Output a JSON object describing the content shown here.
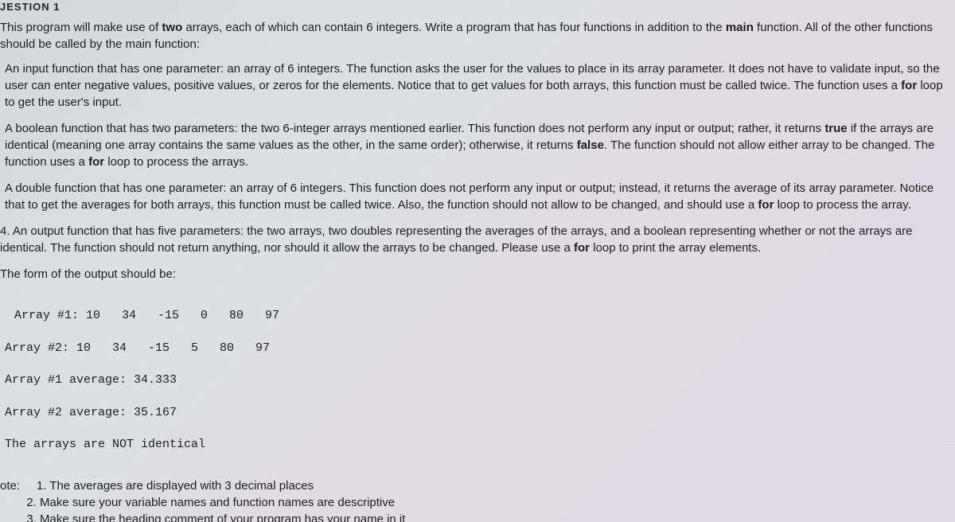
{
  "heading": "JESTION 1",
  "intro_part1": "This program will make use of ",
  "intro_bold1": "two",
  "intro_part2": " arrays, each of which can contain 6 integers. Write a program that has four functions in addition to the ",
  "intro_bold2": "main",
  "intro_part3": " function. All of the other functions should be called by the main function:",
  "p1_a": "An input function that has one parameter: an array of 6 integers. The function asks the user for the values to place in its array parameter. It does not have to validate input, so the user can enter negative values, positive values, or zeros for the elements. Notice that to get values for both arrays, this function must be called twice. The function uses a ",
  "p1_for": "for",
  "p1_b": " loop to get the user's input.",
  "p2_a": "A boolean function that has two parameters: the two 6-integer arrays mentioned earlier. This function does not perform any input or output; rather, it returns ",
  "p2_true": "true",
  "p2_b": " if the arrays are identical (meaning one array contains the same values as the other, in the same order); otherwise, it returns ",
  "p2_false": "false",
  "p2_c": ". The function should not allow either array to be changed. The function uses a    ",
  "p2_for": "for",
  "p2_d": " loop to process the arrays.",
  "p3_a": "A double function that has one parameter: an array of 6 integers. This function does not perform any input or output; instead, it returns the average of its array parameter.     Notice that to get the averages for both    arrays, this function must be called twice.     Also, the function should not allow to be changed, and should     use a ",
  "p3_for": "for",
  "p3_b": " loop to process the array.",
  "p4_a": "4.  An output function that has five parameters: the two arrays, two doubles representing the averages of the arrays, and a boolean representing whether or not the arrays are identical. The function should not return anything, nor should it allow the arrays to be changed. Please use a ",
  "p4_for": "for",
  "p4_b": " loop to print the array elements.",
  "form_label": "The form of the output should be:",
  "output_lines": [
    "Array #1: 10   34   -15   0   80   97",
    "Array #2: 10   34   -15   5   80   97",
    "Array #1 average: 34.333",
    "Array #2 average: 35.167",
    "The arrays are NOT identical"
  ],
  "note_label": "ote:",
  "note1": "1. The averages are displayed with 3 decimal places",
  "note2": "2. Make sure your variable names and function names are descriptive",
  "note3": "3. Make sure the heading comment of your program has your name in it"
}
